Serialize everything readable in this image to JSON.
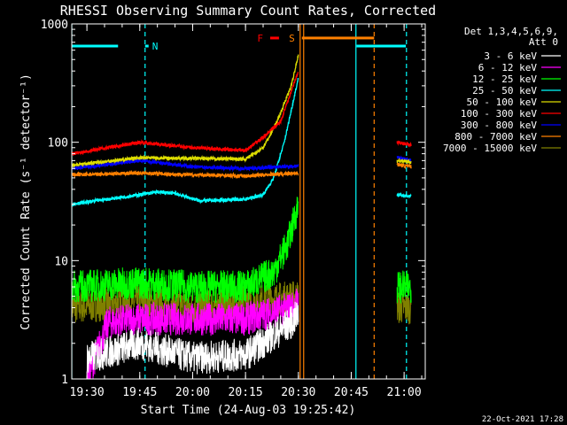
{
  "chart_data": {
    "type": "line",
    "title": "RHESSI Observing Summary Count Rates, Corrected",
    "xlabel": "Start Time (24-Aug-03 19:25:42)",
    "ylabel": "Corrected Count Rate (s⁻¹ detector⁻¹)",
    "y_scale": "log",
    "xlim": [
      "19:25:42",
      "21:06:00"
    ],
    "ylim": [
      1,
      1000
    ],
    "x_ticks": [
      "19:30",
      "19:45",
      "20:00",
      "20:15",
      "20:30",
      "20:45",
      "21:00"
    ],
    "y_ticks": [
      "1",
      "10",
      "100",
      "1000"
    ],
    "legend_position": "top-right",
    "legend_header": [
      "Det 1,3,4,5,6,9,",
      "Att 0"
    ],
    "series": [
      {
        "name": "3 - 6 keV",
        "color": "#ffffff",
        "points": [
          [
            "19:30",
            1.5
          ],
          [
            "19:45",
            2.0
          ],
          [
            "20:00",
            1.5
          ],
          [
            "20:15",
            1.6
          ],
          [
            "20:28",
            3.0
          ],
          [
            "20:30",
            3.5
          ]
        ]
      },
      {
        "name": "6 - 12 keV",
        "color": "#ff00ff",
        "points": [
          [
            "19:30",
            1
          ],
          [
            "19:36",
            3.0
          ],
          [
            "19:45",
            3.2
          ],
          [
            "20:00",
            3.2
          ],
          [
            "20:15",
            3.2
          ],
          [
            "20:28",
            4.0
          ],
          [
            "20:30",
            4.5
          ]
        ]
      },
      {
        "name": "12 - 25 keV",
        "color": "#00ff00",
        "points": [
          [
            "19:25:42",
            6
          ],
          [
            "19:45",
            6.5
          ],
          [
            "20:00",
            6
          ],
          [
            "20:15",
            6
          ],
          [
            "20:23",
            8
          ],
          [
            "20:27",
            14
          ],
          [
            "20:30",
            30
          ],
          [
            "20:58",
            6
          ],
          [
            "21:02",
            6
          ]
        ]
      },
      {
        "name": "25 - 50 keV",
        "color": "#00ffff",
        "points": [
          [
            "19:25:42",
            30
          ],
          [
            "19:45",
            36
          ],
          [
            "19:50",
            38
          ],
          [
            "19:55",
            37
          ],
          [
            "20:02",
            32
          ],
          [
            "20:15",
            33
          ],
          [
            "20:20",
            36
          ],
          [
            "20:23",
            50
          ],
          [
            "20:26",
            100
          ],
          [
            "20:30",
            350
          ],
          [
            "20:58",
            36
          ],
          [
            "21:02",
            35
          ]
        ]
      },
      {
        "name": "50 - 100 keV",
        "color": "#dddd00",
        "points": [
          [
            "19:25:42",
            64
          ],
          [
            "19:45",
            74
          ],
          [
            "20:00",
            73
          ],
          [
            "20:15",
            72
          ],
          [
            "20:20",
            90
          ],
          [
            "20:24",
            150
          ],
          [
            "20:28",
            300
          ],
          [
            "20:30",
            550
          ],
          [
            "20:58",
            70
          ],
          [
            "21:02",
            68
          ]
        ]
      },
      {
        "name": "100 - 300 keV",
        "color": "#ff0000",
        "points": [
          [
            "19:25:42",
            80
          ],
          [
            "19:45",
            100
          ],
          [
            "20:00",
            90
          ],
          [
            "20:15",
            85
          ],
          [
            "20:20",
            110
          ],
          [
            "20:25",
            150
          ],
          [
            "20:30",
            400
          ],
          [
            "20:58",
            100
          ],
          [
            "21:02",
            95
          ]
        ]
      },
      {
        "name": "300 - 800 keV",
        "color": "#0000ff",
        "points": [
          [
            "19:25:42",
            60
          ],
          [
            "19:45",
            70
          ],
          [
            "20:00",
            62
          ],
          [
            "20:15",
            60
          ],
          [
            "20:30",
            63
          ],
          [
            "20:58",
            75
          ],
          [
            "21:02",
            70
          ]
        ]
      },
      {
        "name": "800 - 7000 keV",
        "color": "#ff8000",
        "points": [
          [
            "19:25:42",
            53
          ],
          [
            "19:45",
            55
          ],
          [
            "20:00",
            53
          ],
          [
            "20:15",
            52
          ],
          [
            "20:30",
            55
          ],
          [
            "20:58",
            65
          ],
          [
            "21:02",
            62
          ]
        ]
      },
      {
        "name": "7000 - 15000 keV",
        "color": "#808000",
        "points": [
          [
            "19:25:42",
            4
          ],
          [
            "19:45",
            4.5
          ],
          [
            "20:00",
            4
          ],
          [
            "20:15",
            4.5
          ],
          [
            "20:30",
            5
          ],
          [
            "20:58",
            4
          ],
          [
            "21:02",
            4
          ]
        ]
      }
    ],
    "flag_bars": [
      {
        "label": "N",
        "color": "#00ffff",
        "y": 650,
        "segments": [
          [
            "19:25:42",
            "19:38:50"
          ],
          [
            "19:46:30",
            "19:47:30"
          ],
          [
            "20:46:30",
            "21:00:30"
          ]
        ]
      },
      {
        "label": "F",
        "color": "#ff0000",
        "y": 760,
        "segments": [
          [
            "20:22",
            "20:24:30"
          ]
        ]
      },
      {
        "label": "S",
        "color": "#ff8000",
        "y": 760,
        "segments": [
          [
            "20:31",
            "20:51:30"
          ]
        ]
      }
    ],
    "vertical_markers": [
      {
        "time": "19:25:42",
        "color": "#00ffff",
        "style": "solid"
      },
      {
        "time": "19:46:30",
        "color": "#00ffff",
        "style": "dashed"
      },
      {
        "time": "20:30:30",
        "color": "#ff8000",
        "style": "solid"
      },
      {
        "time": "20:31:30",
        "color": "#ff8000",
        "style": "solid"
      },
      {
        "time": "20:46:20",
        "color": "#00ffff",
        "style": "solid"
      },
      {
        "time": "20:51:30",
        "color": "#ff8000",
        "style": "dashed"
      },
      {
        "time": "21:00:40",
        "color": "#00ffff",
        "style": "dashed"
      }
    ],
    "gap": [
      "20:31",
      "20:58"
    ]
  },
  "footer_date": "22-Oct-2021 17:28"
}
